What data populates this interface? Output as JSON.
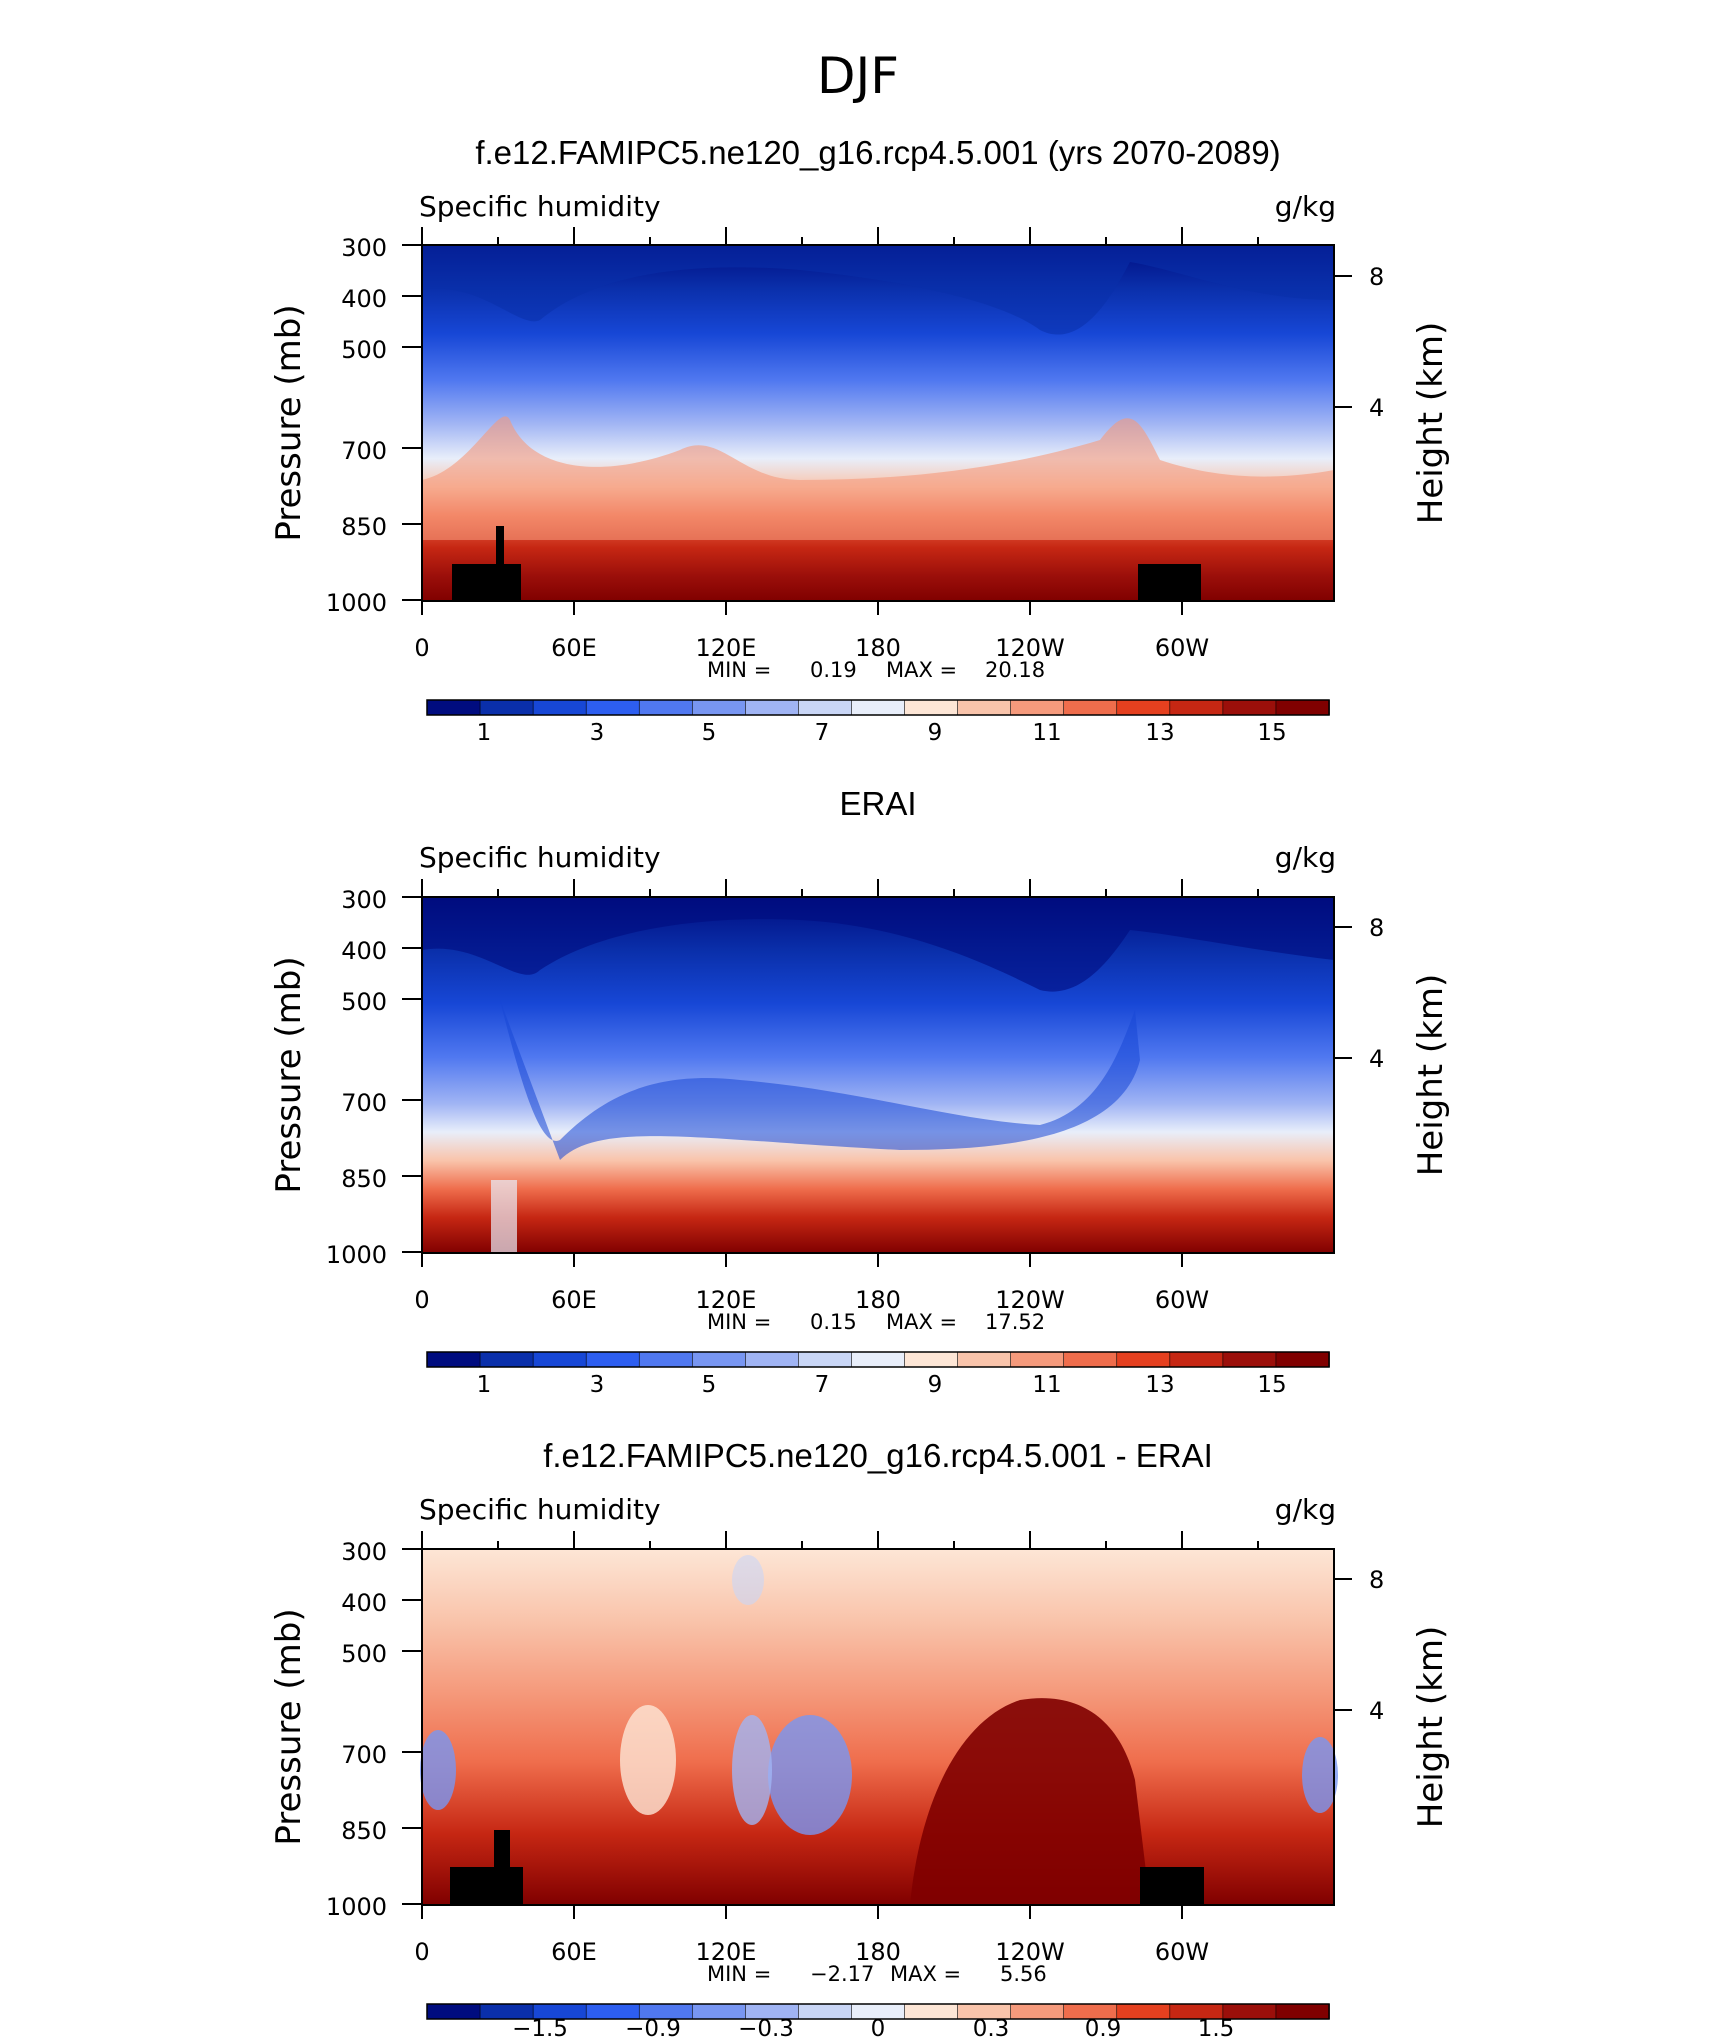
{
  "suptitle": "DJF",
  "x_ticks": [
    "0",
    "60E",
    "120E",
    "180",
    "120W",
    "60W"
  ],
  "y_ticks": [
    "300",
    "400",
    "500",
    "700",
    "850",
    "1000"
  ],
  "y_right_ticks": [
    "8",
    "4"
  ],
  "panels": [
    {
      "title": "f.e12.FAMIPC5.ne120_g16.rcp4.5.001 (yrs 2070-2089)",
      "variable": "Specific humidity",
      "units": "g/kg",
      "ylabel": "Pressure (mb)",
      "ylabel_right": "Height (km)",
      "min_label": "MIN =",
      "min_value": "0.19",
      "max_label": "MAX =",
      "max_value": "20.18",
      "colorbar_labels": [
        "1",
        "3",
        "5",
        "7",
        "9",
        "11",
        "13",
        "15"
      ]
    },
    {
      "title": "ERAI",
      "variable": "Specific humidity",
      "units": "g/kg",
      "ylabel": "Pressure (mb)",
      "ylabel_right": "Height (km)",
      "min_label": "MIN =",
      "min_value": "0.15",
      "max_label": "MAX =",
      "max_value": "17.52",
      "colorbar_labels": [
        "1",
        "3",
        "5",
        "7",
        "9",
        "11",
        "13",
        "15"
      ]
    },
    {
      "title": "f.e12.FAMIPC5.ne120_g16.rcp4.5.001 - ERAI",
      "variable": "Specific humidity",
      "units": "g/kg",
      "ylabel": "Pressure (mb)",
      "ylabel_right": "Height (km)",
      "min_label": "MIN =",
      "min_value": "−2.17",
      "max_label": "MAX =",
      "max_value": "5.56",
      "colorbar_labels": [
        "−1.5",
        "−0.9",
        "−0.3",
        "0",
        "0.3",
        "0.9",
        "1.5"
      ]
    }
  ],
  "chart_data": [
    {
      "type": "heatmap",
      "title": "f.e12.FAMIPC5.ne120_g16.rcp4.5.001 (yrs 2070-2089)",
      "xlabel": "",
      "ylabel": "Pressure (mb)",
      "ylabel_right": "Height (km)",
      "x_range": [
        0,
        360
      ],
      "pressure_range": [
        1000,
        300
      ],
      "y_scale": "log-pressure",
      "colorbar_levels": [
        1,
        2,
        3,
        4,
        5,
        6,
        7,
        8,
        9,
        10,
        11,
        12,
        13,
        14,
        15,
        16
      ],
      "colors": [
        "#000c7f",
        "#0a2faa",
        "#1747d6",
        "#2d5ef0",
        "#5078f0",
        "#7896f2",
        "#a0b4f4",
        "#c9d6f6",
        "#e8eefa",
        "#fde6d6",
        "#f9c4ab",
        "#f59a7c",
        "#ef6d4c",
        "#e5401f",
        "#c62713",
        "#9b0f0a",
        "#800000"
      ],
      "min": 0.19,
      "max": 20.18,
      "land_blocks_lon": [
        [
          12,
          39
        ],
        [
          282,
          306
        ]
      ]
    },
    {
      "type": "heatmap",
      "title": "ERAI",
      "xlabel": "",
      "ylabel": "Pressure (mb)",
      "ylabel_right": "Height (km)",
      "x_range": [
        0,
        360
      ],
      "pressure_range": [
        1000,
        300
      ],
      "y_scale": "log-pressure",
      "colorbar_levels": [
        1,
        2,
        3,
        4,
        5,
        6,
        7,
        8,
        9,
        10,
        11,
        12,
        13,
        14,
        15,
        16
      ],
      "colors": [
        "#000c7f",
        "#0a2faa",
        "#1747d6",
        "#2d5ef0",
        "#5078f0",
        "#7896f2",
        "#a0b4f4",
        "#c9d6f6",
        "#e8eefa",
        "#fde6d6",
        "#f9c4ab",
        "#f59a7c",
        "#ef6d4c",
        "#e5401f",
        "#c62713",
        "#9b0f0a",
        "#800000"
      ],
      "min": 0.15,
      "max": 17.52,
      "land_blocks_lon": []
    },
    {
      "type": "heatmap",
      "title": "f.e12.FAMIPC5.ne120_g16.rcp4.5.001 - ERAI",
      "xlabel": "",
      "ylabel": "Pressure (mb)",
      "ylabel_right": "Height (km)",
      "x_range": [
        0,
        360
      ],
      "pressure_range": [
        1000,
        300
      ],
      "y_scale": "log-pressure",
      "colorbar_levels": [
        -1.8,
        -1.5,
        -1.2,
        -0.9,
        -0.6,
        -0.3,
        -0.1,
        0,
        0.1,
        0.3,
        0.6,
        0.9,
        1.2,
        1.5,
        1.8,
        2.1
      ],
      "colors": [
        "#000c7f",
        "#0a2faa",
        "#1747d6",
        "#2d5ef0",
        "#5078f0",
        "#7896f2",
        "#a0b4f4",
        "#c9d6f6",
        "#e8eefa",
        "#fde6d6",
        "#f9c4ab",
        "#f59a7c",
        "#ef6d4c",
        "#e5401f",
        "#c62713",
        "#9b0f0a",
        "#800000"
      ],
      "min": -2.17,
      "max": 5.56,
      "land_blocks_lon": [
        [
          11,
          40
        ],
        [
          283,
          308
        ]
      ]
    }
  ]
}
